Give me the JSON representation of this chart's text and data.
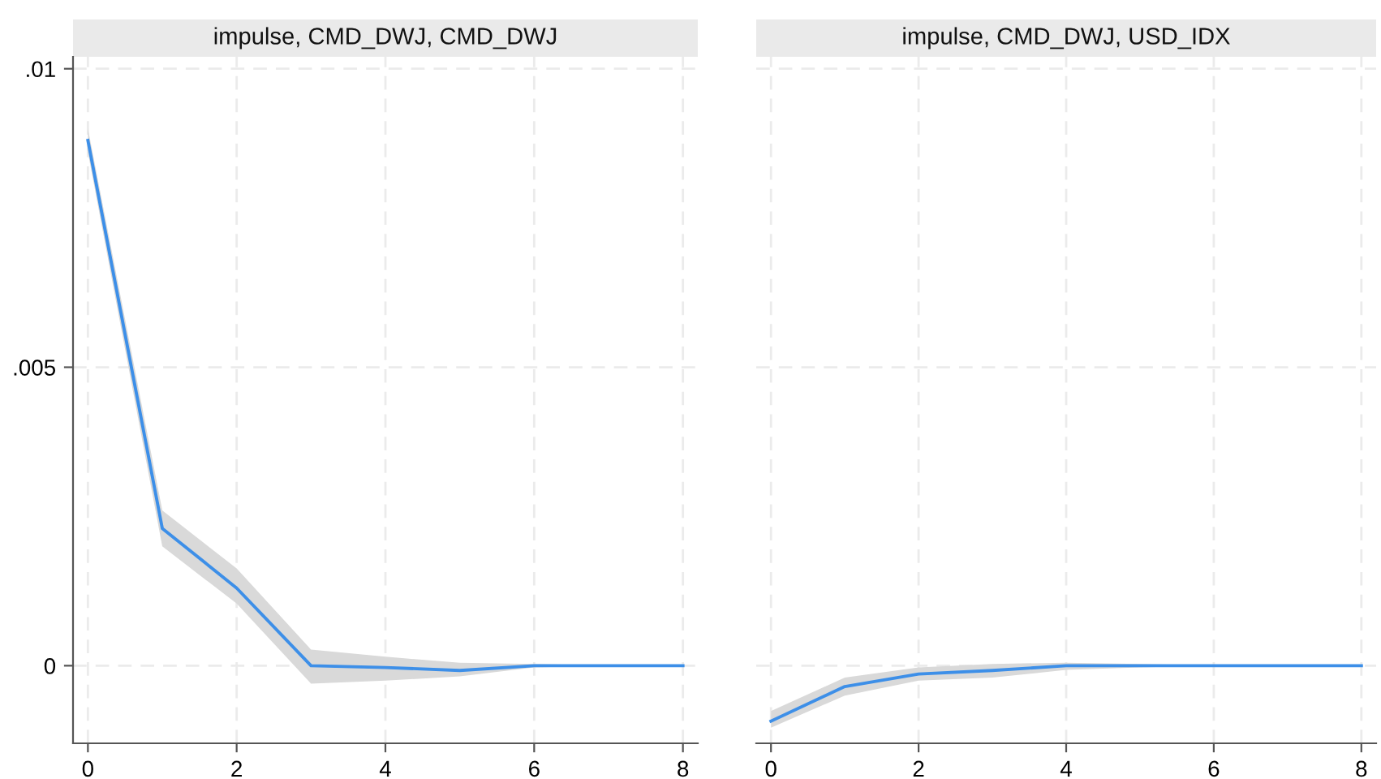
{
  "chart_data": [
    {
      "type": "line",
      "title": "impulse, CMD_DWJ, CMD_DWJ",
      "x": [
        0,
        1,
        2,
        3,
        4,
        5,
        6,
        7,
        8
      ],
      "series": [
        {
          "color": "#3d8fe8",
          "values": [
            0.0088,
            0.0023,
            0.0013,
            0.0,
            -3e-05,
            -8e-05,
            0.0,
            0.0,
            0.0
          ],
          "lower": [
            0.0086,
            0.002,
            0.00104,
            -0.0003,
            -0.00025,
            -0.00018,
            -3e-05,
            0.0,
            0.0
          ],
          "upper": [
            0.009,
            0.0026,
            0.00163,
            0.00027,
            0.00015,
            5e-05,
            3e-05,
            0.0,
            0.0
          ]
        }
      ],
      "xlim": [
        -0.2,
        8.2
      ],
      "ylim": [
        -0.0013,
        0.0102
      ],
      "xticks": [
        0,
        2,
        4,
        6,
        8
      ],
      "yticks": [
        {
          "value": 0,
          "label": "0"
        },
        {
          "value": 0.005,
          "label": ".005"
        },
        {
          "value": 0.01,
          "label": ".01"
        }
      ],
      "grid": true
    },
    {
      "type": "line",
      "title": "impulse, CMD_DWJ, USD_IDX",
      "x": [
        0,
        1,
        2,
        3,
        4,
        5,
        6,
        7,
        8
      ],
      "series": [
        {
          "color": "#3d8fe8",
          "values": [
            -0.00093,
            -0.00035,
            -0.00014,
            -8e-05,
            0.0,
            0.0,
            0.0,
            0.0,
            0.0
          ],
          "lower": [
            -0.00104,
            -0.0005,
            -0.00025,
            -0.0002,
            -7e-05,
            -3e-05,
            0.0,
            0.0,
            0.0
          ],
          "upper": [
            -0.00076,
            -0.0002,
            -3e-05,
            3e-05,
            5e-05,
            3e-05,
            0.0,
            0.0,
            0.0
          ]
        }
      ],
      "xlim": [
        -0.2,
        8.2
      ],
      "ylim": [
        -0.0013,
        0.0102
      ],
      "xticks": [
        0,
        2,
        4,
        6,
        8
      ],
      "yticks": [
        {
          "value": 0,
          "label": null
        },
        {
          "value": 0.005,
          "label": null
        },
        {
          "value": 0.01,
          "label": null
        }
      ],
      "grid": true,
      "tick_labels": "x"
    }
  ]
}
